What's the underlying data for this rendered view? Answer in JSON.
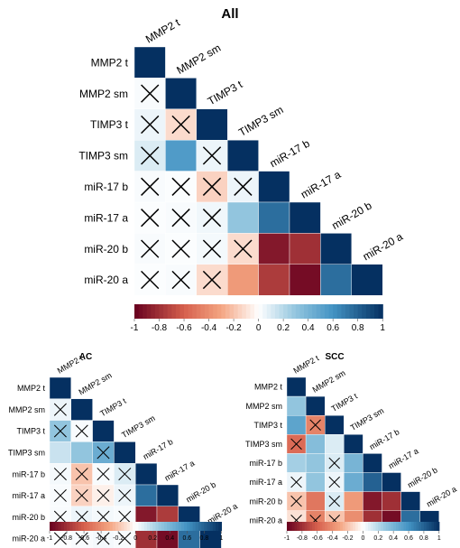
{
  "chart_data": [
    {
      "type": "heatmap",
      "title": "All",
      "variables": [
        "MMP2 t",
        "MMP2 sm",
        "TIMP3 t",
        "TIMP3 sm",
        "miR-17 b",
        "miR-17 a",
        "miR-20 b",
        "miR-20 a"
      ],
      "matrix": [
        [
          1
        ],
        [
          0.02,
          1
        ],
        [
          0.05,
          -0.12,
          1
        ],
        [
          0.1,
          0.55,
          0.05,
          1
        ],
        [
          0.02,
          0.01,
          -0.15,
          0.05,
          1
        ],
        [
          0.01,
          0.02,
          0.04,
          0.3,
          0.75,
          1
        ],
        [
          0.02,
          0.01,
          0.03,
          -0.12,
          -0.9,
          -0.8,
          1
        ],
        [
          0.01,
          0.02,
          -0.12,
          -0.35,
          -0.75,
          -0.95,
          0.75,
          1
        ]
      ],
      "crossed": [
        [
          false
        ],
        [
          true,
          false
        ],
        [
          true,
          true,
          false
        ],
        [
          true,
          false,
          true,
          false
        ],
        [
          true,
          true,
          true,
          true,
          false
        ],
        [
          true,
          true,
          true,
          false,
          false,
          false
        ],
        [
          true,
          true,
          true,
          true,
          false,
          false,
          false,
          false
        ],
        [
          true,
          true,
          true,
          false,
          false,
          false,
          false,
          false
        ]
      ],
      "colorbar": {
        "min": -1,
        "max": 1,
        "ticks": [
          "-1",
          "-0.8",
          "-0.6",
          "-0.4",
          "-0.2",
          "0",
          "0.2",
          "0.4",
          "0.6",
          "0.8",
          "1"
        ]
      }
    },
    {
      "type": "heatmap",
      "title": "AC",
      "variables": [
        "MMP2 t",
        "MMP2 sm",
        "TIMP3 t",
        "TIMP3 sm",
        "miR-17 b",
        "miR-17 a",
        "miR-20 b",
        "miR-20 a"
      ],
      "matrix": [
        [
          1
        ],
        [
          0.05,
          1
        ],
        [
          0.3,
          0.02,
          1
        ],
        [
          0.15,
          0.3,
          0.45,
          1
        ],
        [
          0.03,
          -0.2,
          0.02,
          0.1,
          1
        ],
        [
          0.02,
          -0.15,
          -0.05,
          0.05,
          0.75,
          1
        ],
        [
          0.02,
          0.05,
          0.03,
          0.02,
          -0.9,
          -0.75,
          1
        ],
        [
          0.01,
          0.02,
          0.03,
          0.02,
          -0.8,
          -0.95,
          0.75,
          1
        ]
      ],
      "crossed": [
        [
          false
        ],
        [
          true,
          false
        ],
        [
          true,
          true,
          false
        ],
        [
          false,
          false,
          true,
          false
        ],
        [
          true,
          true,
          true,
          true,
          false
        ],
        [
          true,
          true,
          true,
          true,
          false,
          false
        ],
        [
          true,
          true,
          true,
          true,
          false,
          false,
          false,
          false
        ],
        [
          true,
          true,
          true,
          true,
          false,
          false,
          false,
          false
        ]
      ],
      "colorbar": {
        "min": -1,
        "max": 1,
        "ticks": [
          "-1",
          "-0.8",
          "-0.6",
          "-0.4",
          "-0.2",
          "0",
          "0.2",
          "0.4",
          "0.6",
          "0.8",
          "1"
        ]
      }
    },
    {
      "type": "heatmap",
      "title": "SCC",
      "variables": [
        "MMP2 t",
        "MMP2 sm",
        "TIMP3 t",
        "TIMP3 sm",
        "miR-17 b",
        "miR-17 a",
        "miR-20 b",
        "miR-20 a"
      ],
      "matrix": [
        [
          1
        ],
        [
          0.3,
          1
        ],
        [
          0.5,
          -0.45,
          1
        ],
        [
          -0.55,
          0.35,
          0.1,
          1
        ],
        [
          0.25,
          0.3,
          0.1,
          0.4,
          1
        ],
        [
          0.05,
          0.3,
          0.05,
          0.45,
          0.8,
          1
        ],
        [
          -0.2,
          -0.5,
          0.1,
          -0.35,
          -0.9,
          -0.8,
          1
        ],
        [
          -0.1,
          -0.45,
          -0.2,
          -0.4,
          -0.8,
          -0.95,
          0.75,
          1
        ]
      ],
      "crossed": [
        [
          false
        ],
        [
          false,
          false
        ],
        [
          false,
          true,
          false
        ],
        [
          true,
          false,
          false,
          false
        ],
        [
          false,
          false,
          true,
          false,
          false
        ],
        [
          true,
          false,
          true,
          false,
          false,
          false
        ],
        [
          true,
          false,
          true,
          false,
          false,
          false,
          false,
          false
        ],
        [
          true,
          true,
          true,
          false,
          false,
          false,
          false,
          false
        ]
      ],
      "colorbar": {
        "min": -1,
        "max": 1,
        "ticks": [
          "-1",
          "-0.8",
          "-0.6",
          "-0.4",
          "-0.2",
          "0",
          "0.2",
          "0.4",
          "0.6",
          "0.8",
          "1"
        ]
      }
    }
  ]
}
